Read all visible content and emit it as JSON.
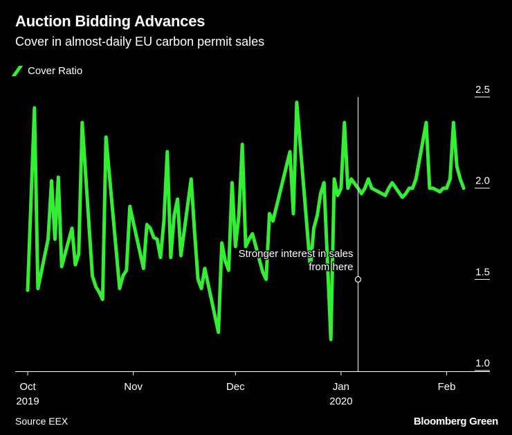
{
  "title": "Auction Bidding Advances",
  "subtitle": "Cover in almost-daily EU carbon permit sales",
  "source": "Source EEX",
  "brand": "Bloomberg Green",
  "colors": {
    "line": "#33ee33",
    "background": "#000000",
    "text": "#ffffff"
  },
  "chart_data": {
    "type": "line",
    "title": "Auction Bidding Advances",
    "subtitle": "Cover in almost-daily EU carbon permit sales",
    "xlabel": "",
    "ylabel": "",
    "x_unit": "day index since 2019-10-01",
    "ylim": [
      1.0,
      2.5
    ],
    "yticks": [
      1.0,
      1.5,
      2.0,
      2.5
    ],
    "ytick_labels": [
      "1.0",
      "1.5",
      "2.0",
      "2.5"
    ],
    "xlim": [
      0,
      130
    ],
    "xticks": [
      {
        "x": 0,
        "label": "Oct",
        "sublabel": "2019"
      },
      {
        "x": 31,
        "label": "Nov",
        "sublabel": ""
      },
      {
        "x": 61,
        "label": "Dec",
        "sublabel": ""
      },
      {
        "x": 92,
        "label": "Jan",
        "sublabel": "2020"
      },
      {
        "x": 123,
        "label": "Feb",
        "sublabel": ""
      }
    ],
    "grid": false,
    "legend": "top-left",
    "series": [
      {
        "name": "Cover Ratio",
        "x": [
          0,
          2,
          3,
          6,
          7,
          8,
          9,
          10,
          13,
          14,
          15,
          16,
          19,
          20,
          21,
          22,
          23,
          27,
          28,
          29,
          30,
          34,
          35,
          36,
          37,
          38,
          39,
          40,
          41,
          42,
          43,
          44,
          45,
          48,
          49,
          50,
          51,
          52,
          56,
          57,
          58,
          59,
          60,
          61,
          62,
          63,
          64,
          65,
          66,
          69,
          70,
          71,
          72,
          77,
          78,
          79,
          83,
          84,
          85,
          86,
          87,
          89,
          90,
          91,
          92,
          93,
          94,
          95,
          97,
          98,
          99,
          100,
          101,
          105,
          106,
          107,
          110,
          111,
          112,
          113,
          114,
          117,
          118,
          119,
          120,
          121,
          122,
          123,
          124,
          125,
          126,
          127,
          128
        ],
        "values": [
          1.44,
          2.44,
          1.45,
          1.72,
          2.04,
          1.72,
          2.06,
          1.57,
          1.78,
          1.58,
          1.64,
          2.36,
          1.52,
          1.46,
          1.43,
          1.39,
          2.28,
          1.45,
          1.52,
          1.55,
          1.9,
          1.56,
          1.8,
          1.78,
          1.73,
          1.72,
          1.62,
          1.82,
          2.2,
          1.62,
          1.85,
          1.94,
          1.63,
          2.05,
          1.76,
          1.5,
          1.45,
          1.56,
          1.21,
          1.7,
          1.6,
          1.55,
          2.03,
          1.68,
          1.85,
          2.24,
          1.68,
          1.72,
          1.75,
          1.54,
          1.5,
          1.86,
          1.82,
          2.2,
          1.86,
          2.47,
          1.56,
          1.78,
          1.85,
          1.97,
          2.03,
          1.17,
          2.05,
          1.96,
          2.0,
          2.36,
          2.0,
          2.05,
          2.0,
          1.97,
          2.0,
          2.05,
          2.0,
          1.96,
          2.0,
          2.03,
          1.95,
          1.97,
          2.0,
          2.0,
          2.05,
          2.36,
          2.0,
          2.0,
          1.99,
          1.98,
          2.0,
          2.0,
          2.05,
          2.36,
          2.12,
          2.05,
          2.0
        ]
      }
    ],
    "annotation": {
      "x": 97,
      "y": 1.5,
      "text_line1": "Stronger interest in sales",
      "text_line2": "from here"
    }
  }
}
